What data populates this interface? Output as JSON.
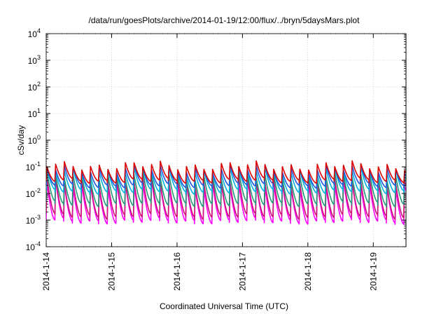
{
  "chart_data": {
    "type": "line",
    "title": "/data/run/goesPlots/archive/2014-01-19/12:00/flux/../bryn/5daysMars.plot",
    "xlabel": "Coordinated Universal Time (UTC)",
    "ylabel": "cSv/day",
    "yscale": "log",
    "ylim": [
      0.0001,
      10000
    ],
    "y_ticks": [
      {
        "base": "10",
        "exp": "-4"
      },
      {
        "base": "10",
        "exp": "-3"
      },
      {
        "base": "10",
        "exp": "-2"
      },
      {
        "base": "10",
        "exp": "-1"
      },
      {
        "base": "10",
        "exp": "0"
      },
      {
        "base": "10",
        "exp": "1"
      },
      {
        "base": "10",
        "exp": "2"
      },
      {
        "base": "10",
        "exp": "3"
      },
      {
        "base": "10",
        "exp": "4"
      }
    ],
    "x_ticks": [
      "2014-1-14",
      "2014-1-15",
      "2014-1-16",
      "2014-1-17",
      "2014-1-18",
      "2014-1-19"
    ],
    "x_start": "2014-01-14T00:00",
    "x_end": "2014-01-19T12:00",
    "grid": true,
    "cycle_hours": 3.2,
    "series": [
      {
        "color": "#ff00ff",
        "peak": 0.022,
        "trough": 0.0009
      },
      {
        "color": "#cc1177",
        "peak": 0.03,
        "trough": 0.0014
      },
      {
        "color": "#229977",
        "peak": 0.045,
        "trough": 0.004
      },
      {
        "color": "#00b0e0",
        "peak": 0.07,
        "trough": 0.012
      },
      {
        "color": "#2255dd",
        "peak": 0.085,
        "trough": 0.02
      },
      {
        "color": "#dd0000",
        "peak": 0.11,
        "trough": 0.03
      }
    ]
  }
}
